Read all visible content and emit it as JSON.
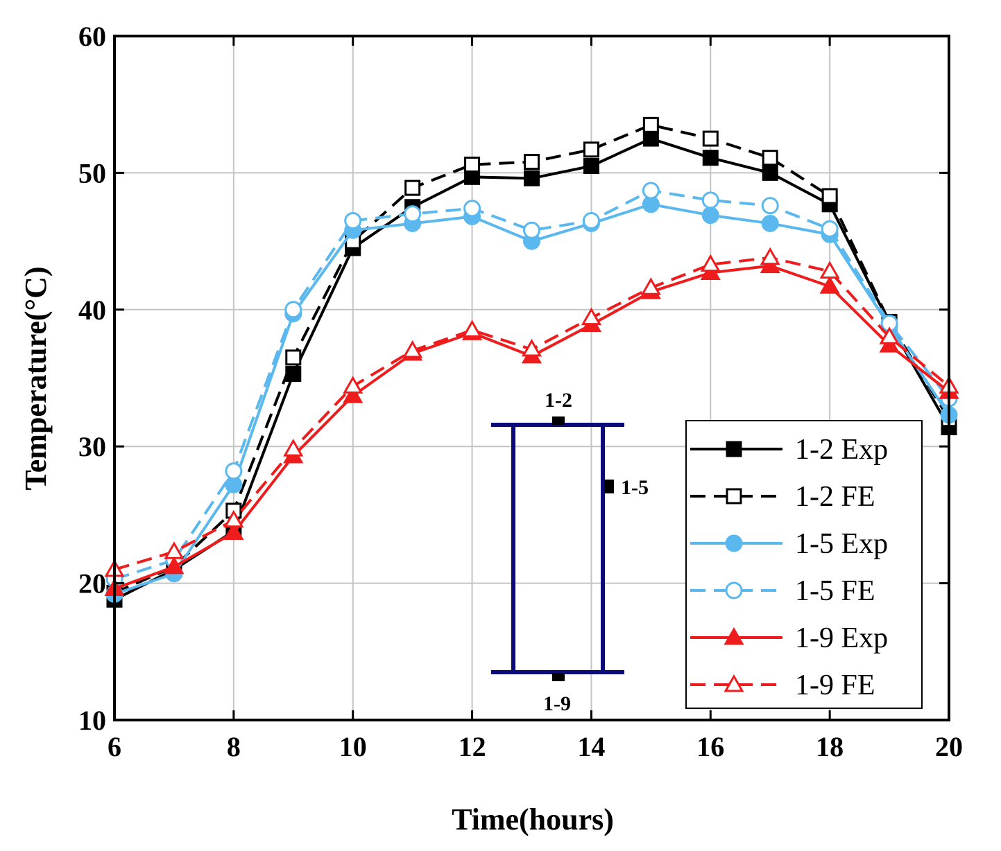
{
  "chart_data": {
    "type": "line",
    "title": "",
    "xlabel": "Time(hours)",
    "ylabel": "Temperature(°C)",
    "xlim": [
      6,
      20
    ],
    "ylim": [
      10,
      60
    ],
    "xticks": [
      "6",
      "8",
      "10",
      "12",
      "14",
      "16",
      "18",
      "20"
    ],
    "yticks": [
      "10",
      "20",
      "30",
      "40",
      "50",
      "60"
    ],
    "grid": true,
    "legend_position": "lower-right",
    "x": [
      6,
      7,
      8,
      9,
      10,
      11,
      12,
      13,
      14,
      15,
      16,
      17,
      18,
      19,
      20
    ],
    "series": [
      {
        "name": "1-2 Exp",
        "color": "#000000",
        "dashed": false,
        "marker": "square",
        "filled": true,
        "values": [
          18.8,
          21.0,
          23.8,
          35.3,
          44.5,
          47.5,
          49.7,
          49.6,
          50.5,
          52.5,
          51.1,
          50.0,
          47.7,
          39.0,
          31.4
        ]
      },
      {
        "name": "1-2 FE",
        "color": "#000000",
        "dashed": true,
        "marker": "square",
        "filled": false,
        "values": [
          19.3,
          21.2,
          25.3,
          36.5,
          45.0,
          48.9,
          50.6,
          50.8,
          51.7,
          53.5,
          52.5,
          51.1,
          48.3,
          39.1,
          32.0
        ]
      },
      {
        "name": "1-5 Exp",
        "color": "#5bb8ee",
        "dashed": false,
        "marker": "circle",
        "filled": true,
        "values": [
          19.2,
          20.7,
          27.2,
          39.7,
          45.8,
          46.3,
          46.8,
          45.0,
          46.3,
          47.7,
          46.9,
          46.3,
          45.5,
          38.8,
          32.3
        ]
      },
      {
        "name": "1-5 FE",
        "color": "#5bb8ee",
        "dashed": true,
        "marker": "circle",
        "filled": false,
        "values": [
          20.3,
          21.7,
          28.2,
          40.0,
          46.5,
          47.0,
          47.4,
          45.8,
          46.5,
          48.7,
          48.0,
          47.6,
          45.9,
          39.0,
          33.5
        ]
      },
      {
        "name": "1-9 Exp",
        "color": "#ee1c1c",
        "dashed": false,
        "marker": "triangle",
        "filled": true,
        "values": [
          19.6,
          21.2,
          23.7,
          29.3,
          33.7,
          36.8,
          38.3,
          36.6,
          38.9,
          41.3,
          42.7,
          43.2,
          41.7,
          37.4,
          34.0
        ]
      },
      {
        "name": "1-9 FE",
        "color": "#ee1c1c",
        "dashed": true,
        "marker": "triangle",
        "filled": false,
        "values": [
          21.0,
          22.3,
          24.6,
          29.8,
          34.4,
          37.0,
          38.5,
          37.1,
          39.4,
          41.6,
          43.3,
          43.8,
          42.8,
          38.0,
          34.4
        ]
      }
    ],
    "inset": {
      "description_labels": [
        "1-2",
        "1-5",
        "1-9"
      ],
      "color": "#0a0a78"
    }
  }
}
